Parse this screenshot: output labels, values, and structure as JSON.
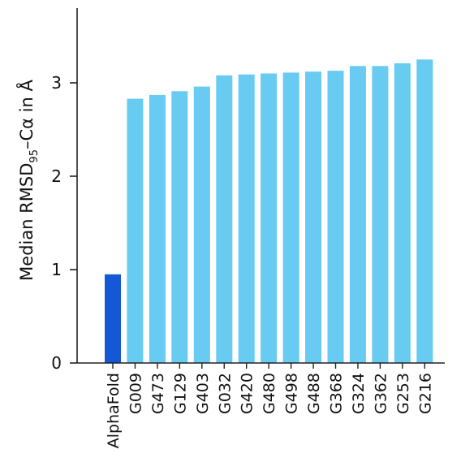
{
  "chart_data": {
    "type": "bar",
    "title": "",
    "xlabel": "",
    "ylabel": {
      "pre": "Median RMSD",
      "sub": "95",
      "post": "–Cα in Å"
    },
    "ylim": [
      0,
      3.8
    ],
    "yticks": [
      "0",
      "1",
      "2",
      "3"
    ],
    "grid": false,
    "legend": "none",
    "categories": [
      "AlphaFold",
      "G009",
      "G473",
      "G129",
      "G403",
      "G032",
      "G420",
      "G480",
      "G498",
      "G488",
      "G368",
      "G324",
      "G362",
      "G253",
      "G216"
    ],
    "values": [
      0.95,
      2.83,
      2.87,
      2.91,
      2.96,
      3.08,
      3.09,
      3.1,
      3.11,
      3.12,
      3.13,
      3.18,
      3.18,
      3.21,
      3.25
    ],
    "colors": {
      "highlight": "#1558d6",
      "bar": "#67cbf2",
      "axis": "#222222"
    },
    "highlight_index": 0
  }
}
